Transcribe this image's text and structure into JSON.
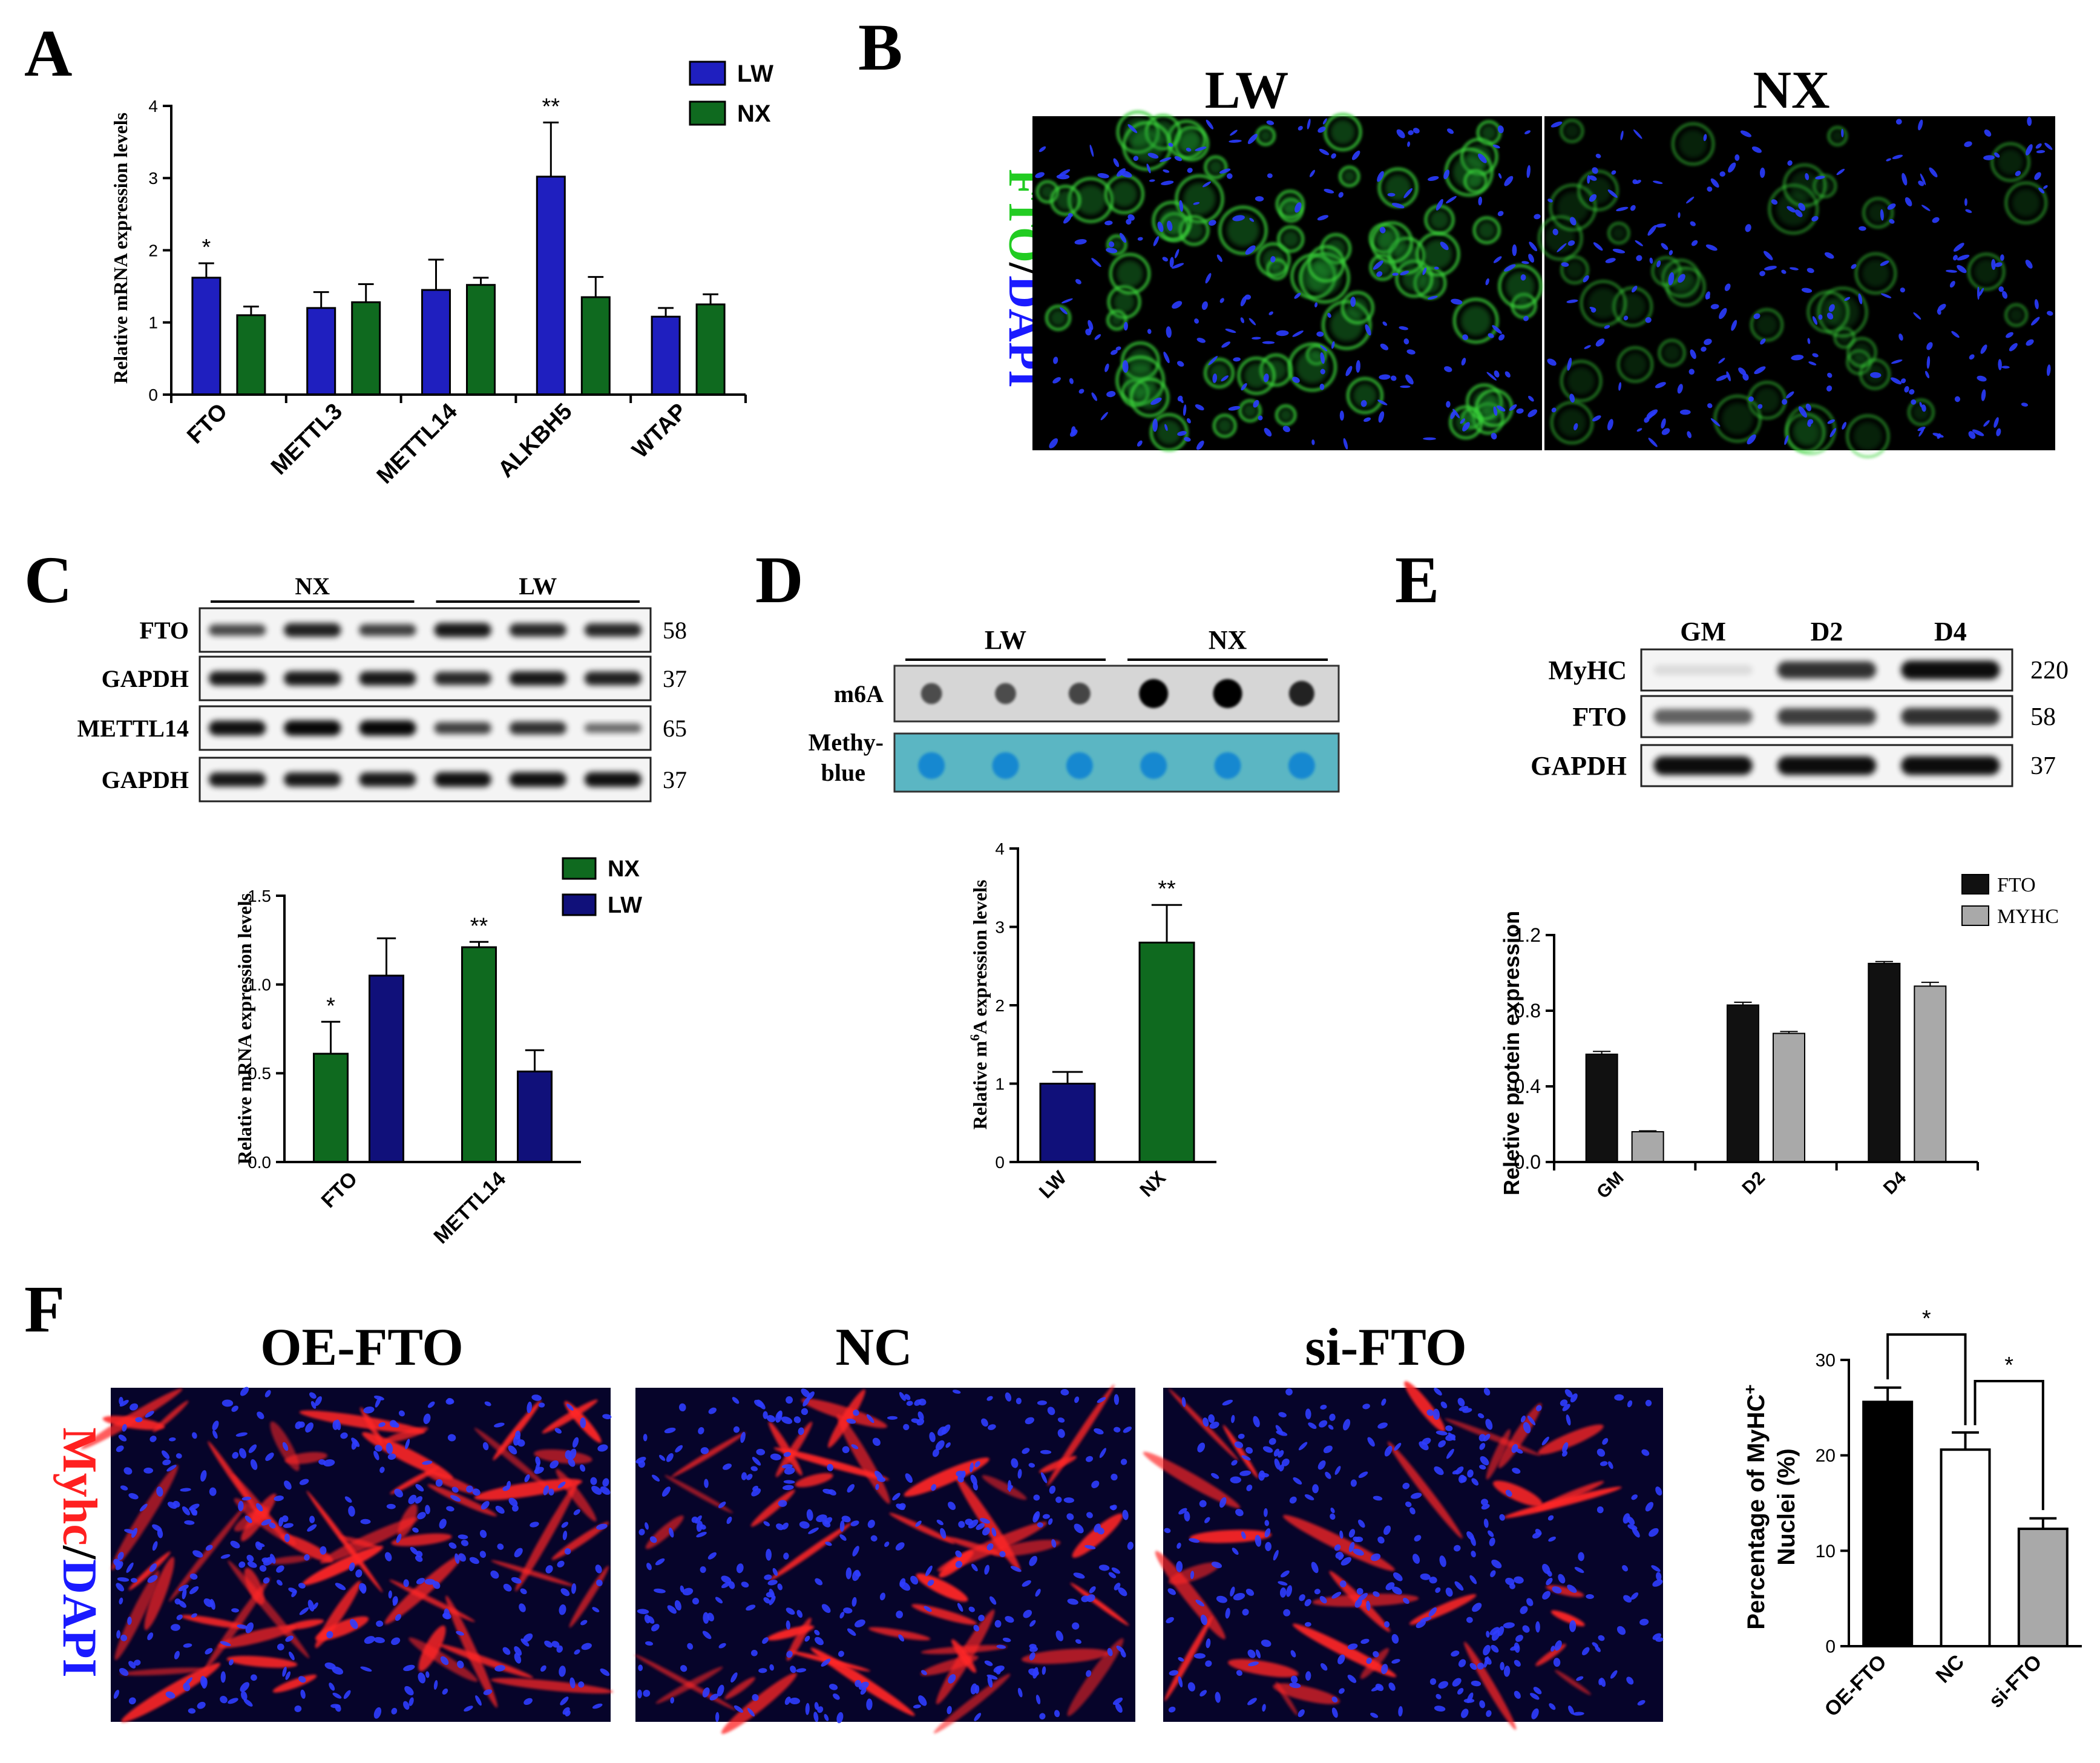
{
  "panel_letters": {
    "a": "A",
    "b": "B",
    "c": "C",
    "d": "D",
    "e": "E",
    "f": "F"
  },
  "colors": {
    "blue": "#1f1fbf",
    "green": "#0f6a1f",
    "navy": "#10107a",
    "black": "#111111",
    "gray": "#a9a9a9",
    "red": "#ff2020",
    "dapi": "#1a1aff",
    "fto_green": "#22cc22"
  },
  "panel_b": {
    "left_label": "LW",
    "right_label": "NX",
    "side_fto": "FTO",
    "side_slash": "/",
    "side_dapi": "DAPI"
  },
  "panel_c_blot": {
    "groups": [
      "NX",
      "LW"
    ],
    "rows": [
      {
        "label": "FTO",
        "kda": "58",
        "intensity": [
          0.55,
          0.8,
          0.6,
          0.85,
          0.75,
          0.75
        ]
      },
      {
        "label": "GAPDH",
        "kda": "37",
        "intensity": [
          0.85,
          0.85,
          0.85,
          0.75,
          0.85,
          0.8
        ]
      },
      {
        "label": "METTL14",
        "kda": "65",
        "intensity": [
          0.9,
          0.95,
          0.95,
          0.6,
          0.7,
          0.35
        ]
      },
      {
        "label": "GAPDH",
        "kda": "37",
        "intensity": [
          0.85,
          0.85,
          0.85,
          0.9,
          0.9,
          0.9
        ]
      }
    ]
  },
  "panel_d_blot": {
    "groups": [
      "LW",
      "NX"
    ],
    "m6a_label": "m6A",
    "mb_label_1": "Methy-",
    "mb_label_2": "blue",
    "m6a_intensity": [
      0.45,
      0.45,
      0.5,
      1.0,
      1.0,
      0.75
    ]
  },
  "panel_e_blot": {
    "lanes": [
      "GM",
      "D2",
      "D4"
    ],
    "rows": [
      {
        "label": "MyHC",
        "kda": "220",
        "intensity": [
          0.1,
          0.8,
          0.95
        ]
      },
      {
        "label": "FTO",
        "kda": "58",
        "intensity": [
          0.6,
          0.75,
          0.8
        ]
      },
      {
        "label": "GAPDH",
        "kda": "37",
        "intensity": [
          0.95,
          0.95,
          0.95
        ]
      }
    ]
  },
  "panel_f_images": {
    "labels": [
      "OE-FTO",
      "NC",
      "si-FTO"
    ],
    "side_myhc": "Myhc",
    "side_slash": "/",
    "side_dapi": "DAPI"
  },
  "chart_data": [
    {
      "id": "A",
      "type": "bar",
      "categories": [
        "FTO",
        "METTL3",
        "METTL14",
        "ALKBH5",
        "WTAP"
      ],
      "series": [
        {
          "name": "LW",
          "values": [
            1.62,
            1.2,
            1.45,
            3.02,
            1.08
          ],
          "errors": [
            0.2,
            0.22,
            0.42,
            0.75,
            0.12
          ],
          "color": "#1f1fbf"
        },
        {
          "name": "NX",
          "values": [
            1.1,
            1.28,
            1.52,
            1.35,
            1.25
          ],
          "errors": [
            0.12,
            0.25,
            0.1,
            0.28,
            0.14
          ],
          "color": "#0f6a1f"
        }
      ],
      "significance": [
        {
          "category": "FTO",
          "label": "*"
        },
        {
          "category": "ALKBH5",
          "label": "**"
        }
      ],
      "ylabel": "Relative mRNA expression levels",
      "ylim": [
        0,
        4
      ],
      "yticks": [
        "0",
        "1",
        "2",
        "3",
        "4"
      ]
    },
    {
      "id": "C",
      "type": "bar",
      "categories": [
        "FTO",
        "METTL14"
      ],
      "series": [
        {
          "name": "NX",
          "values": [
            0.61,
            1.21
          ],
          "errors": [
            0.18,
            0.03
          ],
          "color": "#0f6a1f"
        },
        {
          "name": "LW",
          "values": [
            1.05,
            0.51
          ],
          "errors": [
            0.21,
            0.12
          ],
          "color": "#10107a"
        }
      ],
      "significance": [
        {
          "category": "FTO",
          "label": "*"
        },
        {
          "category": "METTL14",
          "label": "**"
        }
      ],
      "ylabel": "Relative mRNA expression levels",
      "ylim": [
        0,
        1.5
      ],
      "yticks": [
        "0.0",
        "0.5",
        "1.0",
        "1.5"
      ]
    },
    {
      "id": "D",
      "type": "bar",
      "categories": [
        "LW",
        "NX"
      ],
      "values": [
        1.0,
        2.8
      ],
      "errors": [
        0.15,
        0.48
      ],
      "colors": [
        "#10107a",
        "#0f6a1f"
      ],
      "significance": [
        {
          "category": "NX",
          "label": "**"
        }
      ],
      "ylabel_pre": "Relative m",
      "ylabel_sup": "6",
      "ylabel_post": "A expression levels",
      "ylim": [
        0,
        4
      ],
      "yticks": [
        "0",
        "1",
        "2",
        "3",
        "4"
      ]
    },
    {
      "id": "E",
      "type": "bar",
      "categories": [
        "GM",
        "D2",
        "D4"
      ],
      "series": [
        {
          "name": "FTO",
          "values": [
            0.57,
            0.83,
            1.05
          ],
          "errors": [
            0.015,
            0.015,
            0.01
          ],
          "color": "#111111"
        },
        {
          "name": "MYHC",
          "values": [
            0.16,
            0.68,
            0.93
          ],
          "errors": [
            0.005,
            0.01,
            0.02
          ],
          "color": "#a9a9a9"
        }
      ],
      "ylabel": "Reletive protein expression",
      "ylim": [
        0,
        1.2
      ],
      "yticks": [
        "0.0",
        "0.4",
        "0.8",
        "1.2"
      ]
    },
    {
      "id": "F",
      "type": "bar",
      "categories": [
        "OE-FTO",
        "NC",
        "si-FTO"
      ],
      "values": [
        25.6,
        20.6,
        12.3
      ],
      "errors": [
        1.5,
        1.8,
        1.1
      ],
      "colors": [
        "#000000",
        "#ffffff",
        "#a9a9a9"
      ],
      "significance": [
        {
          "between": [
            "OE-FTO",
            "NC"
          ],
          "label": "*"
        },
        {
          "between": [
            "NC",
            "si-FTO"
          ],
          "label": "*"
        }
      ],
      "ylabel_line1_pre": "Percentage of MyHC",
      "ylabel_line1_sup": "+",
      "ylabel_line2": "Nuclei (%)",
      "ylim": [
        0,
        30
      ],
      "yticks": [
        "0",
        "10",
        "20",
        "30"
      ]
    }
  ]
}
